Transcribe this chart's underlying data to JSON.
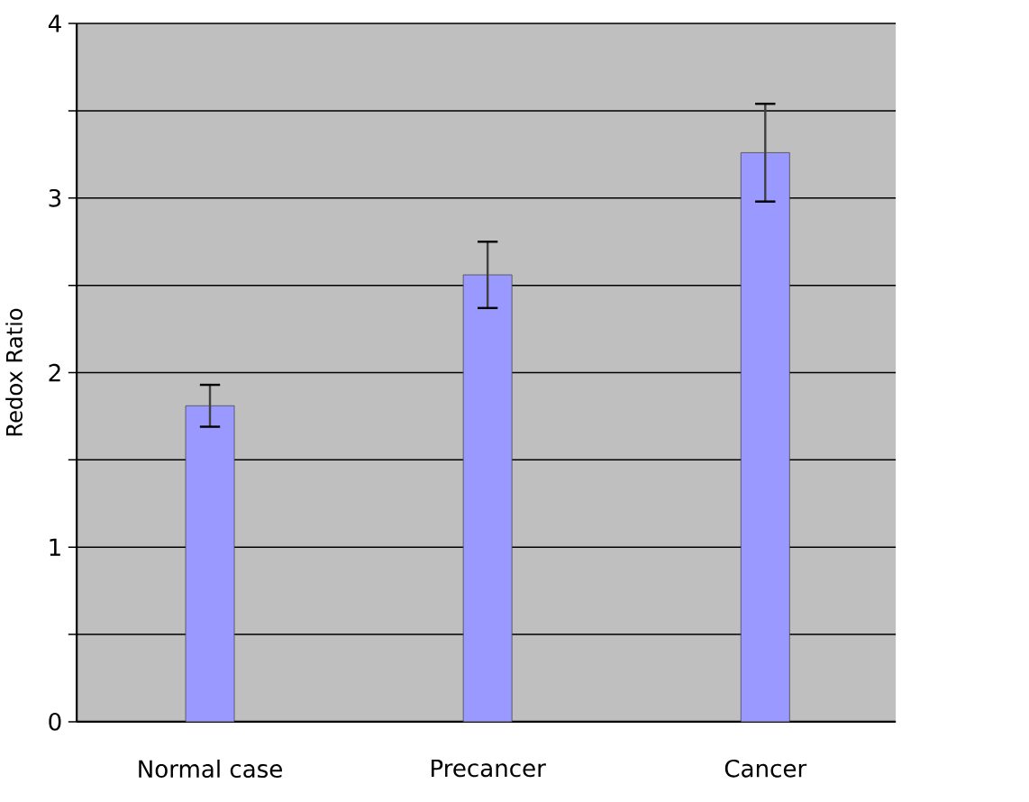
{
  "chart_data": {
    "type": "bar",
    "ylabel": "Redox Ratio",
    "categories": [
      "Normal case",
      "Precancer",
      "Cancer"
    ],
    "values": [
      1.81,
      2.56,
      3.26
    ],
    "errors": [
      0.12,
      0.19,
      0.28
    ],
    "color": "#9999ff",
    "ylim": [
      0,
      4
    ],
    "yticks": [
      0,
      {
        "value": 0.5,
        "label": null
      },
      1,
      {
        "value": 1.5,
        "label": null
      },
      2,
      {
        "value": 2.5,
        "label": null
      },
      3,
      {
        "value": 3.5,
        "label": null
      },
      4
    ],
    "grid": "y"
  }
}
